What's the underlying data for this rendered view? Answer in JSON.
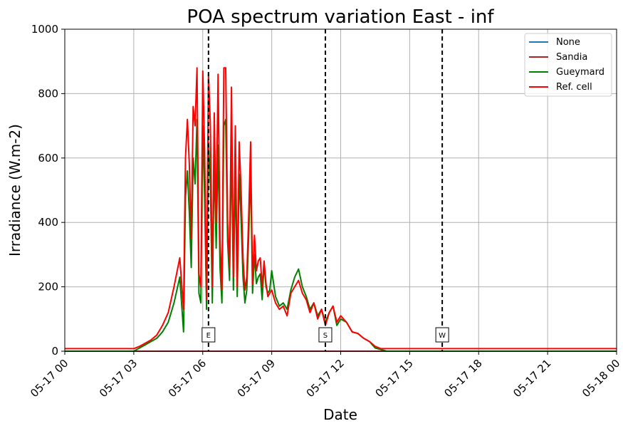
{
  "chart_data": {
    "type": "line",
    "title": "POA spectrum variation East - inf",
    "xlabel": "Date",
    "ylabel": "Irradiance (W.m-2)",
    "xlim": [
      "2024-05-17 00:00",
      "2024-05-18 00:00"
    ],
    "ylim": [
      0,
      1000
    ],
    "x_ticks": [
      "05-17 00",
      "05-17 03",
      "05-17 06",
      "05-17 09",
      "05-17 12",
      "05-17 15",
      "05-17 18",
      "05-17 21",
      "05-18 00"
    ],
    "y_ticks": [
      0,
      200,
      400,
      600,
      800,
      1000
    ],
    "grid": true,
    "legend_position": "top-right",
    "markers": [
      {
        "label": "E",
        "time": "2024-05-17 06:15"
      },
      {
        "label": "S",
        "time": "2024-05-17 11:20"
      },
      {
        "label": "W",
        "time": "2024-05-17 16:25"
      }
    ],
    "x": [
      "00:00",
      "01:00",
      "02:00",
      "03:00",
      "03:15",
      "03:30",
      "03:45",
      "04:00",
      "04:15",
      "04:30",
      "04:45",
      "05:00",
      "05:10",
      "05:15",
      "05:20",
      "05:25",
      "05:30",
      "05:35",
      "05:40",
      "05:45",
      "05:50",
      "05:55",
      "06:00",
      "06:05",
      "06:10",
      "06:15",
      "06:20",
      "06:25",
      "06:30",
      "06:35",
      "06:40",
      "06:45",
      "06:50",
      "06:55",
      "07:00",
      "07:05",
      "07:10",
      "07:15",
      "07:20",
      "07:25",
      "07:30",
      "07:35",
      "07:40",
      "07:45",
      "07:50",
      "07:55",
      "08:00",
      "08:05",
      "08:10",
      "08:15",
      "08:20",
      "08:25",
      "08:30",
      "08:35",
      "08:40",
      "08:45",
      "08:50",
      "08:55",
      "09:00",
      "09:10",
      "09:20",
      "09:30",
      "09:40",
      "09:50",
      "10:00",
      "10:10",
      "10:20",
      "10:30",
      "10:40",
      "10:50",
      "11:00",
      "11:10",
      "11:20",
      "11:30",
      "11:40",
      "11:50",
      "12:00",
      "12:15",
      "12:30",
      "12:45",
      "13:00",
      "13:15",
      "13:30",
      "13:45",
      "14:00",
      "14:15",
      "14:30",
      "14:45",
      "15:00",
      "15:15",
      "15:30",
      "15:45",
      "16:00",
      "16:15",
      "16:30",
      "16:45",
      "17:00",
      "17:15",
      "17:30",
      "17:45",
      "18:00",
      "18:15",
      "18:30",
      "18:45",
      "19:00",
      "20:00",
      "21:00",
      "22:00",
      "23:00",
      "24:00"
    ],
    "series": [
      {
        "name": "None",
        "color": "#1f77b4",
        "values": [
          0,
          0,
          0,
          0,
          0,
          0,
          0,
          0,
          0,
          0,
          0,
          0,
          0,
          0,
          0,
          0,
          0,
          0,
          0,
          0,
          0,
          0,
          0,
          0,
          0,
          0,
          0,
          0,
          0,
          0,
          0,
          0,
          0,
          0,
          0,
          0,
          0,
          0,
          0,
          0,
          0,
          0,
          0,
          0,
          0,
          0,
          0,
          0,
          0,
          0,
          0,
          0,
          0,
          0,
          0,
          0,
          0,
          0,
          0,
          0,
          0,
          0,
          0,
          0,
          0,
          0,
          0,
          0,
          0,
          0,
          0,
          0,
          0,
          0,
          0,
          0,
          0,
          0,
          0,
          0,
          0,
          0,
          0,
          0,
          0,
          0,
          0,
          0,
          0,
          0,
          0,
          0,
          0,
          0,
          0,
          0,
          0,
          0,
          0,
          0,
          0,
          0,
          0,
          0,
          0,
          0,
          0,
          0,
          0,
          0
        ]
      },
      {
        "name": "Sandia",
        "color": "#b22222",
        "values": [
          0,
          0,
          0,
          0,
          0,
          0,
          0,
          0,
          0,
          0,
          0,
          0,
          0,
          0,
          0,
          0,
          0,
          0,
          0,
          0,
          0,
          0,
          0,
          0,
          0,
          0,
          0,
          0,
          0,
          0,
          0,
          0,
          0,
          0,
          0,
          0,
          0,
          0,
          0,
          0,
          0,
          0,
          0,
          0,
          0,
          0,
          0,
          0,
          0,
          0,
          0,
          0,
          0,
          0,
          0,
          0,
          0,
          0,
          0,
          0,
          0,
          0,
          0,
          0,
          0,
          0,
          0,
          0,
          0,
          0,
          0,
          0,
          0,
          0,
          0,
          0,
          0,
          0,
          0,
          0,
          0,
          0,
          0,
          0,
          0,
          0,
          0,
          0,
          0,
          0,
          0,
          0,
          0,
          0,
          0,
          0,
          0,
          0,
          0,
          0,
          0,
          0,
          0,
          0,
          0,
          0,
          0,
          0,
          0,
          0
        ]
      },
      {
        "name": "Gueymard",
        "color": "#008000",
        "values": [
          0,
          0,
          0,
          0,
          10,
          20,
          30,
          40,
          60,
          90,
          150,
          230,
          60,
          480,
          560,
          430,
          260,
          600,
          520,
          720,
          180,
          150,
          700,
          480,
          130,
          650,
          520,
          150,
          600,
          320,
          640,
          260,
          150,
          700,
          720,
          340,
          220,
          640,
          190,
          560,
          170,
          550,
          410,
          230,
          150,
          190,
          360,
          560,
          180,
          300,
          210,
          230,
          240,
          160,
          270,
          200,
          180,
          190,
          250,
          170,
          140,
          150,
          130,
          190,
          230,
          255,
          200,
          170,
          130,
          150,
          110,
          130,
          90,
          120,
          140,
          80,
          100,
          90,
          60,
          55,
          40,
          30,
          10,
          5,
          0,
          0,
          0,
          0,
          0,
          0,
          0,
          0,
          0,
          0,
          0,
          0,
          0,
          0,
          0,
          0,
          0,
          0,
          0,
          0,
          0,
          0,
          0,
          0,
          0,
          0
        ]
      },
      {
        "name": "Ref. cell",
        "color": "#ff0000",
        "values": [
          8,
          8,
          8,
          8,
          15,
          25,
          35,
          50,
          80,
          120,
          200,
          290,
          130,
          600,
          720,
          580,
          350,
          760,
          700,
          880,
          240,
          200,
          870,
          620,
          160,
          860,
          700,
          200,
          740,
          400,
          860,
          350,
          190,
          880,
          880,
          400,
          260,
          820,
          230,
          700,
          200,
          650,
          500,
          290,
          190,
          230,
          420,
          650,
          210,
          360,
          250,
          280,
          290,
          200,
          280,
          210,
          170,
          180,
          190,
          150,
          130,
          140,
          110,
          180,
          200,
          220,
          180,
          160,
          120,
          150,
          100,
          130,
          80,
          120,
          140,
          90,
          110,
          90,
          60,
          55,
          40,
          30,
          15,
          8,
          8,
          8,
          8,
          8,
          8,
          8,
          8,
          8,
          8,
          8,
          8,
          8,
          8,
          8,
          8,
          8,
          8,
          8,
          8,
          8,
          8,
          8,
          8,
          8,
          8,
          8
        ]
      }
    ]
  }
}
